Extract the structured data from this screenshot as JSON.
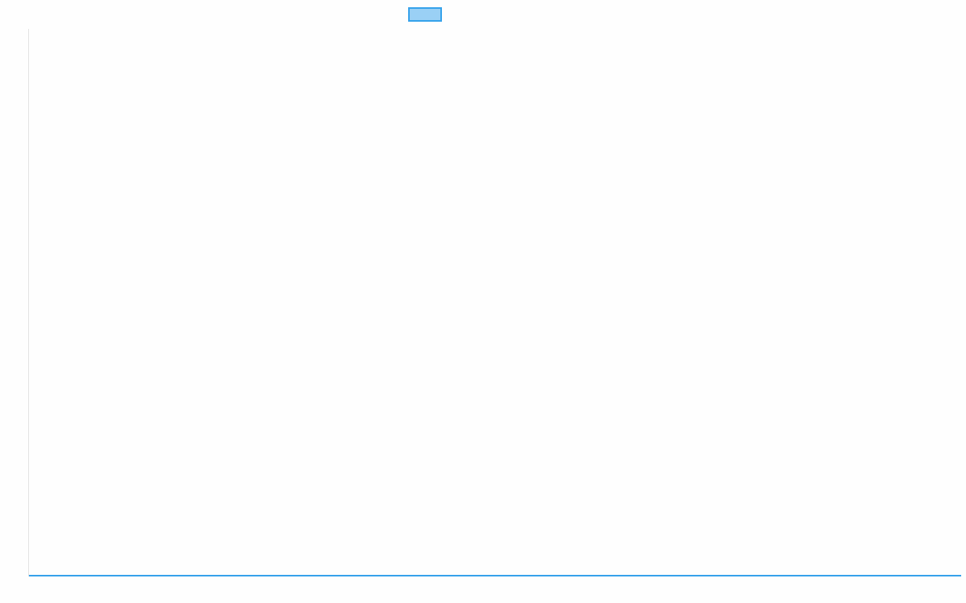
{
  "chart_data": {
    "type": "line",
    "title": "",
    "xlabel": "",
    "ylabel": "",
    "legend_placement": "top",
    "grid": false,
    "series": [
      {
        "values": [
          0,
          0
        ],
        "color": "#36a2eb",
        "fill": "#9ad0f5"
      }
    ],
    "ylim": [
      0,
      1
    ]
  }
}
